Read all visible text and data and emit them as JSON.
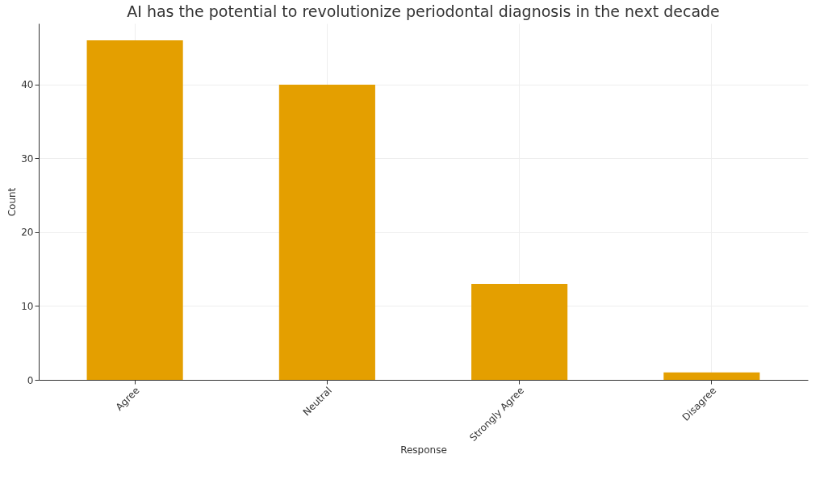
{
  "chart_data": {
    "type": "bar",
    "title": "AI has the potential to revolutionize periodontal diagnosis in the next decade",
    "xlabel": "Response",
    "ylabel": "Count",
    "categories": [
      "Agree",
      "Neutral",
      "Strongly Agree",
      "Disagree"
    ],
    "values": [
      46,
      40,
      13,
      1
    ],
    "color": "#e49f00",
    "ylim": [
      0,
      48.3
    ],
    "yticks": [
      0,
      10,
      20,
      30,
      40
    ],
    "grid": true
  }
}
